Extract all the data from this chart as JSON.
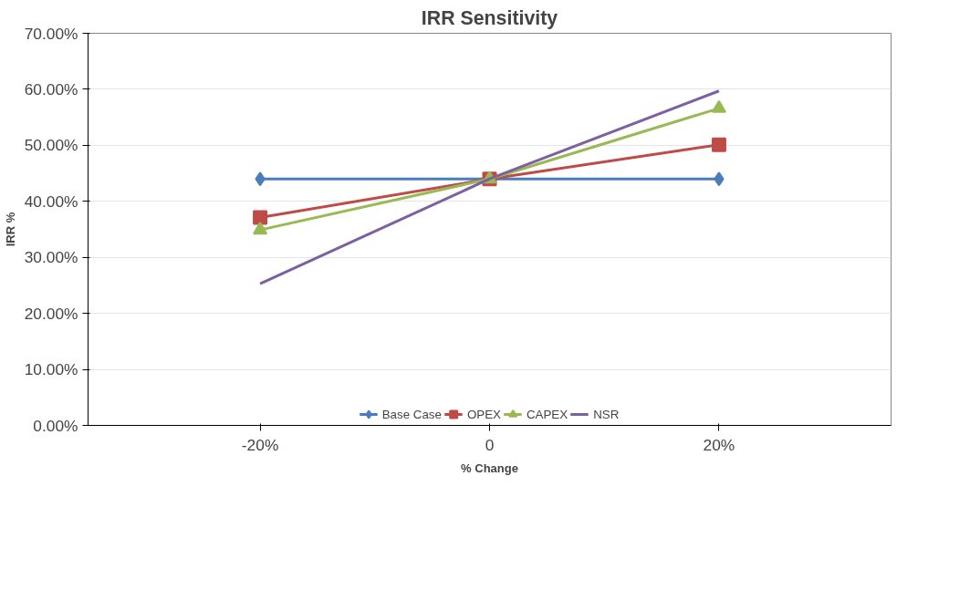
{
  "chart_data": {
    "type": "line",
    "title": "IRR Sensitivity",
    "xlabel": "% Change",
    "ylabel": "IRR %",
    "categories": [
      "-20%",
      "0",
      "20%"
    ],
    "series": [
      {
        "name": "Base Case",
        "color": "#4a7ebb",
        "marker": "diamond",
        "values": [
          44.0,
          44.0,
          44.0
        ]
      },
      {
        "name": "OPEX",
        "color": "#be4b48",
        "marker": "square",
        "values": [
          37.1,
          44.0,
          50.1
        ]
      },
      {
        "name": "CAPEX",
        "color": "#98b954",
        "marker": "triangle",
        "values": [
          34.9,
          44.0,
          56.6
        ]
      },
      {
        "name": "NSR",
        "color": "#7d60a0",
        "marker": "none",
        "values": [
          25.3,
          44.0,
          59.7
        ]
      }
    ],
    "ylim": [
      0,
      70
    ],
    "yticks": [
      {
        "value": 0,
        "label": "0.00%"
      },
      {
        "value": 10,
        "label": "10.00%"
      },
      {
        "value": 20,
        "label": "20.00%"
      },
      {
        "value": 30,
        "label": "30.00%"
      },
      {
        "value": 40,
        "label": "40.00%"
      },
      {
        "value": 50,
        "label": "50.00%"
      },
      {
        "value": 60,
        "label": "60.00%"
      },
      {
        "value": 70,
        "label": "70.00%"
      }
    ],
    "grid": "y",
    "legend": "bottom"
  }
}
